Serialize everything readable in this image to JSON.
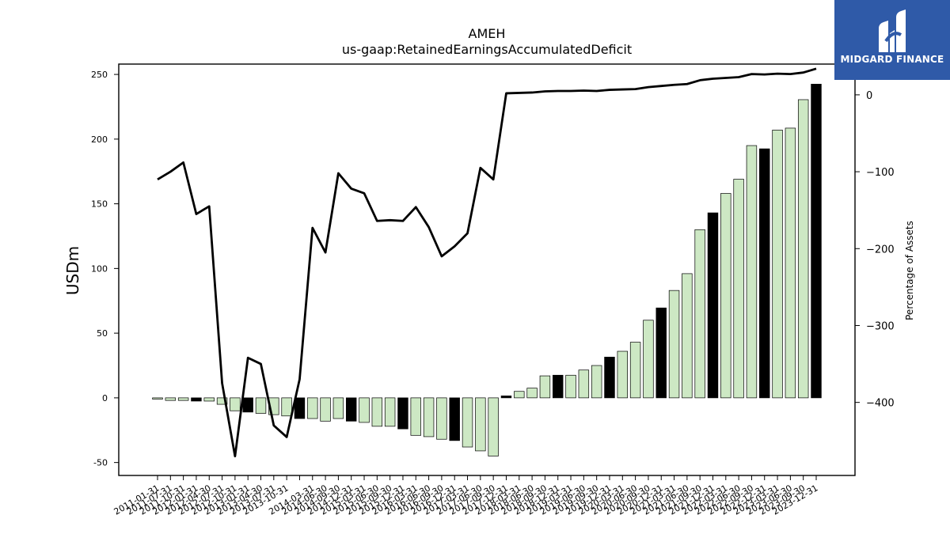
{
  "brand": {
    "name": "MIDGARD FINANCE",
    "color": "#2f5aa8"
  },
  "chart_data": {
    "type": "bar",
    "title": "AMEH",
    "subtitle": "us-gaap:RetainedEarningsAccumulatedDeficit",
    "ylabel": "USDm",
    "y2label": "Percentage of Assets",
    "ylim": [
      -60,
      258
    ],
    "y2lim": [
      -495,
      40
    ],
    "yticks": [
      -50,
      0,
      50,
      100,
      150,
      200,
      250
    ],
    "y2ticks": [
      -400,
      -300,
      -200,
      -100,
      0
    ],
    "bar_color": "#cde8c4",
    "highlight_color": "#000000",
    "line_color": "#000000",
    "categories": [
      "2011-01-31",
      "2011-07-31",
      "2011-10-31",
      "2012-01-31",
      "2012-04-30",
      "2012-07-31",
      "2012-10-31",
      "2013-01-31",
      "2013-04-30",
      "2013-07-31",
      "2013-10-31",
      "2014-01-31",
      "2014-03-31",
      "2014-06-30",
      "2014-09-30",
      "2014-12-31",
      "2015-03-31",
      "2015-06-30",
      "2015-09-30",
      "2015-12-31",
      "2016-03-31",
      "2016-06-30",
      "2016-09-30",
      "2016-12-31",
      "2017-03-31",
      "2017-06-30",
      "2017-09-30",
      "2017-12-31",
      "2018-03-31",
      "2018-06-30",
      "2018-09-30",
      "2018-12-31",
      "2019-03-31",
      "2019-06-30",
      "2019-09-30",
      "2019-12-31",
      "2020-03-31",
      "2020-06-30",
      "2020-09-30",
      "2020-12-31",
      "2021-03-31",
      "2021-06-30",
      "2021-09-30",
      "2021-12-31",
      "2022-03-31",
      "2022-06-30",
      "2022-09-30",
      "2022-12-31",
      "2023-03-31",
      "2023-06-30",
      "2023-09-30",
      "2023-12-31"
    ],
    "visible_tick_labels": [
      "2011-01-31",
      "2011-07-31",
      "2011-10-31",
      "2012-01-31",
      "2012-04-30",
      "2012-07-31",
      "2012-10-31",
      "2013-01-31",
      "2013-04-30",
      "2013-07-31",
      "2013-10-31",
      "2014-03-31",
      "2014-06-30",
      "2014-09-30",
      "2014-12-31",
      "2015-03-31",
      "2015-06-30",
      "2015-09-30",
      "2015-12-31",
      "2016-03-31",
      "2016-06-30",
      "2016-09-30",
      "2016-12-31",
      "2017-03-31",
      "2017-06-30",
      "2017-09-30",
      "2017-12-31",
      "2018-03-31",
      "2018-06-30",
      "2018-09-30",
      "2018-12-31",
      "2019-03-31",
      "2019-06-30",
      "2019-09-30",
      "2019-12-31",
      "2020-03-31",
      "2020-06-30",
      "2020-09-30",
      "2020-12-31",
      "2021-03-31",
      "2021-06-30",
      "2021-09-30",
      "2021-12-31",
      "2022-03-31",
      "2022-06-30",
      "2022-09-30",
      "2022-12-31",
      "2023-03-31",
      "2023-06-30",
      "2023-09-30",
      "2023-12-31"
    ],
    "series": [
      {
        "type": "bar",
        "values": [
          -1,
          -2,
          -2,
          -2.5,
          -2.5,
          -5,
          -10,
          -11,
          -12,
          -13,
          -14,
          -16,
          -16,
          -18,
          -16,
          -18,
          -19,
          -22,
          -22,
          -24,
          -29,
          -30,
          -32,
          -33,
          -38,
          -41,
          -45,
          1.5,
          5,
          7.5,
          17,
          17.5,
          17.5,
          21.5,
          25,
          31.5,
          36,
          43,
          60,
          69.5,
          83,
          96,
          130,
          143,
          158,
          169,
          195,
          192.5,
          207,
          208.5,
          230.5,
          242.5
        ],
        "highlighted": [
          false,
          false,
          false,
          true,
          false,
          false,
          false,
          true,
          false,
          false,
          false,
          true,
          false,
          false,
          false,
          true,
          false,
          false,
          false,
          true,
          false,
          false,
          false,
          true,
          false,
          false,
          false,
          true,
          false,
          false,
          false,
          true,
          false,
          false,
          false,
          true,
          false,
          false,
          false,
          true,
          false,
          false,
          false,
          true,
          false,
          false,
          false,
          true,
          false,
          false,
          false,
          true
        ]
      },
      {
        "type": "line",
        "axis": "right",
        "values": [
          -110,
          -100,
          -88,
          -155,
          -145,
          -375,
          -470,
          -342,
          -350,
          -430,
          -445,
          -370,
          -173,
          -205,
          -102,
          -122,
          -128,
          -164,
          -163,
          -164,
          -146,
          -172,
          -210,
          -197,
          -180,
          -95,
          -110,
          2,
          2.5,
          3,
          4.5,
          5,
          5,
          5.5,
          5,
          6.5,
          7,
          7.5,
          10,
          11.5,
          13,
          14,
          19,
          21,
          22,
          23,
          27,
          26.5,
          27.5,
          27,
          29,
          34
        ]
      }
    ]
  }
}
